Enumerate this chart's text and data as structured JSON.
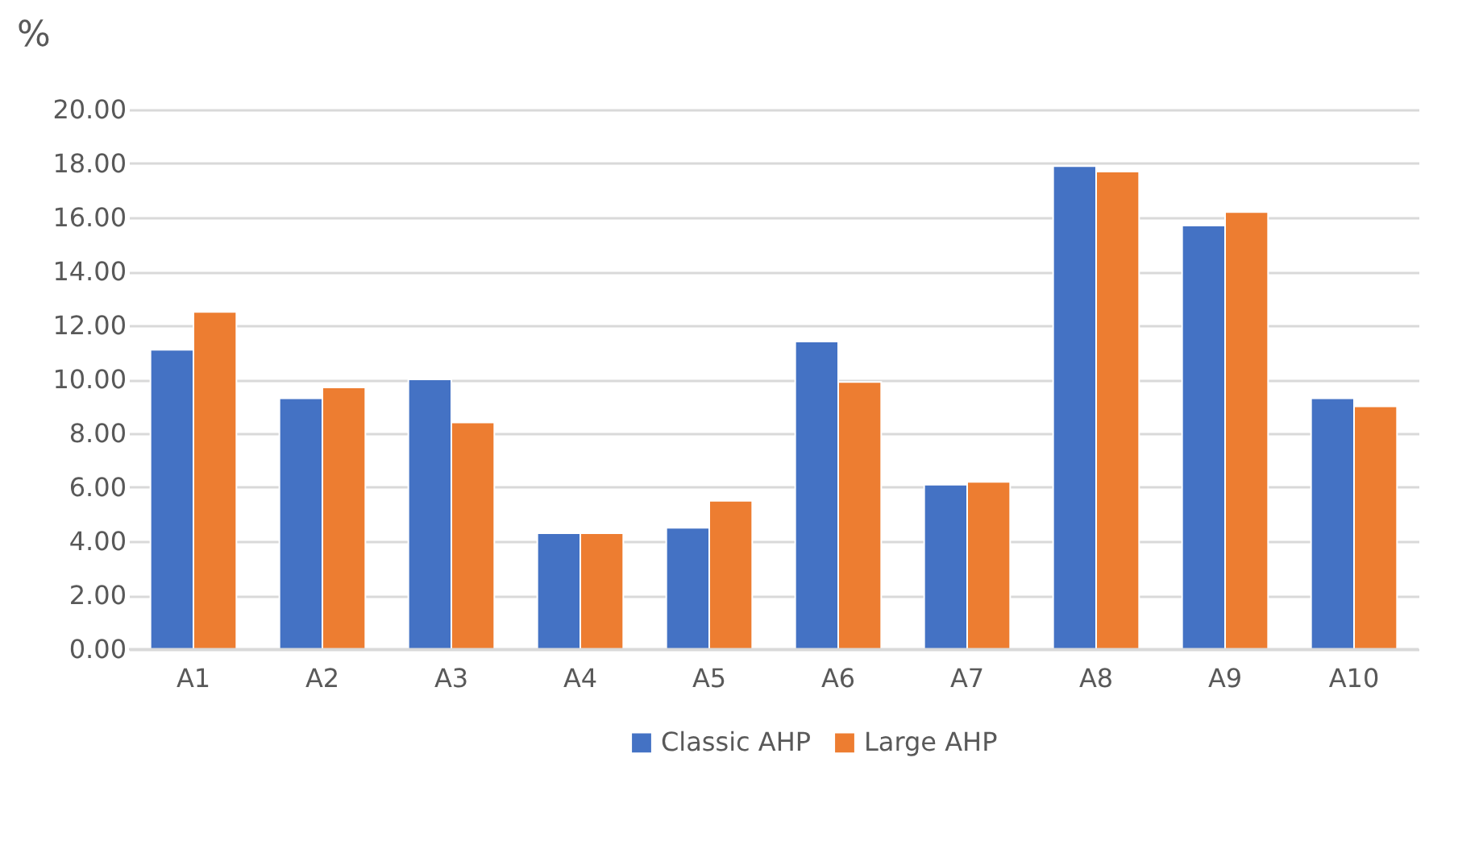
{
  "chart_data": {
    "type": "bar",
    "ylabel": "%",
    "categories": [
      "A1",
      "A2",
      "A3",
      "A4",
      "A5",
      "A6",
      "A7",
      "A8",
      "A9",
      "A10"
    ],
    "series": [
      {
        "name": "Classic AHP",
        "color": "#4472c4",
        "values": [
          11.1,
          9.3,
          10.0,
          4.3,
          4.5,
          11.4,
          6.1,
          17.9,
          15.7,
          9.3
        ]
      },
      {
        "name": "Large AHP",
        "color": "#ed7d31",
        "values": [
          12.5,
          9.7,
          8.4,
          4.3,
          5.5,
          9.9,
          6.2,
          17.7,
          16.2,
          9.0
        ]
      }
    ],
    "ylim": [
      0,
      20
    ],
    "yticks": [
      {
        "value": 0,
        "label": "0.00"
      },
      {
        "value": 2,
        "label": "2.00"
      },
      {
        "value": 4,
        "label": "4.00"
      },
      {
        "value": 6,
        "label": "6.00"
      },
      {
        "value": 8,
        "label": "8.00"
      },
      {
        "value": 10,
        "label": "10.00"
      },
      {
        "value": 12,
        "label": "12.00"
      },
      {
        "value": 14,
        "label": "14.00"
      },
      {
        "value": 16,
        "label": "16.00"
      },
      {
        "value": 18,
        "label": "18.00"
      },
      {
        "value": 20,
        "label": "20.00"
      }
    ],
    "grid": "y",
    "legend": "bottom"
  }
}
